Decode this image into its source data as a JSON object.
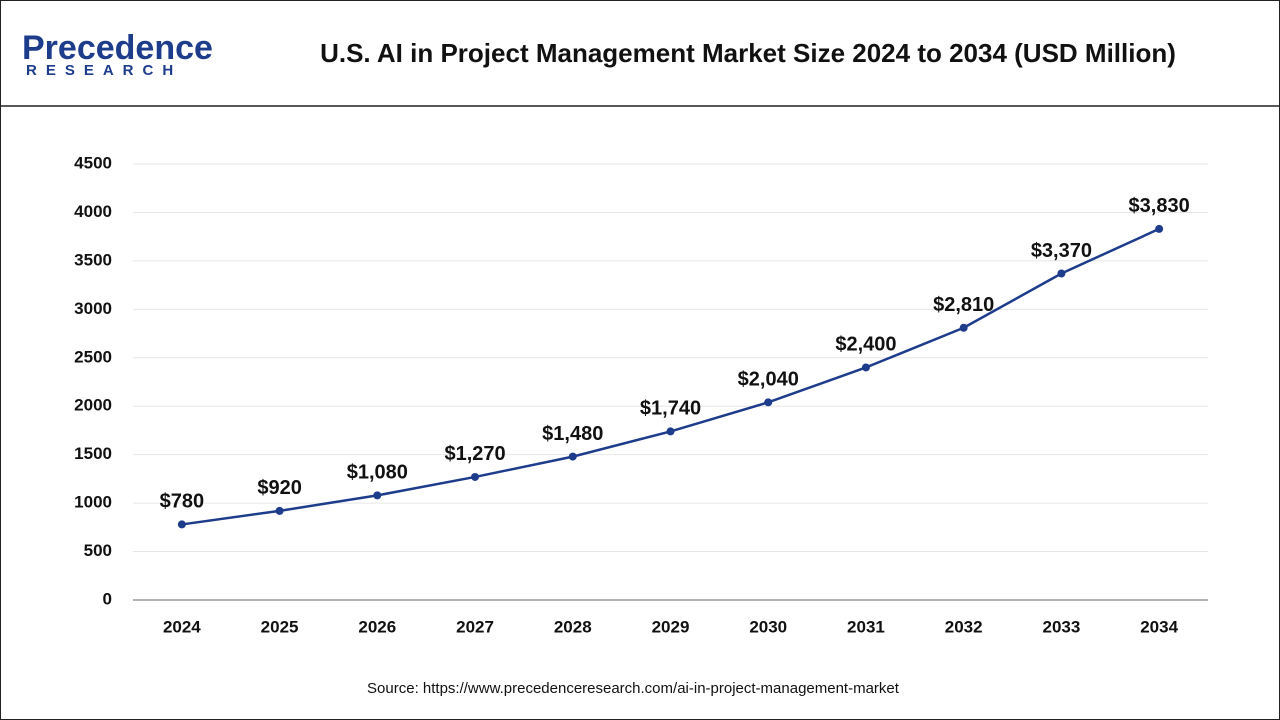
{
  "logo": {
    "name": "Precedence",
    "subtitle": "RESEARCH"
  },
  "chart_data": {
    "type": "line",
    "title": "U.S. AI in Project Management Market Size 2024 to 2034 (USD Million)",
    "categories": [
      "2024",
      "2025",
      "2026",
      "2027",
      "2028",
      "2029",
      "2030",
      "2031",
      "2032",
      "2033",
      "2034"
    ],
    "values": [
      780,
      920,
      1080,
      1270,
      1480,
      1740,
      2040,
      2400,
      2810,
      3370,
      3830
    ],
    "value_labels": [
      "$780",
      "$920",
      "$1,080",
      "$1,270",
      "$1,480",
      "$1,740",
      "$2,040",
      "$2,400",
      "$2,810",
      "$3,370",
      "$3,830"
    ],
    "color": "#1d3c8c",
    "ylim": [
      0,
      4500
    ],
    "yticks": [
      0,
      500,
      1000,
      1500,
      2000,
      2500,
      3000,
      3500,
      4000,
      4500
    ],
    "grid": true,
    "source": "Source: https://www.precedenceresearch.com/ai-in-project-management-market"
  }
}
